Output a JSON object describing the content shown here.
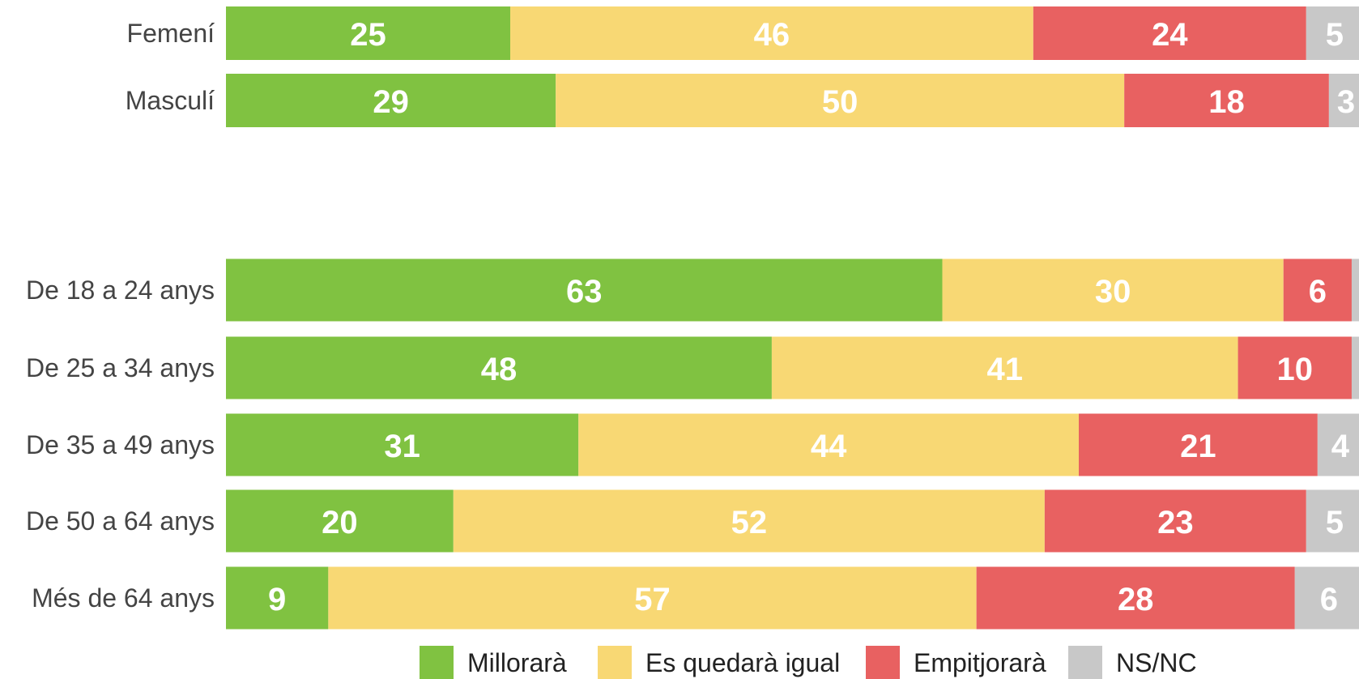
{
  "chart_data": {
    "type": "stacked-barh",
    "categories": [
      "Femení",
      "Masculí",
      "De 18 a 24 anys",
      "De 25 a 34 anys",
      "De 35 a 49 anys",
      "De 50 a 64 anys",
      "Més de 64 anys"
    ],
    "series": [
      {
        "name": "Millorarà",
        "color": "#80c241",
        "values": [
          25,
          29,
          63,
          48,
          31,
          20,
          9
        ]
      },
      {
        "name": "Es quedarà igual",
        "color": "#f8d874",
        "values": [
          46,
          50,
          30,
          41,
          44,
          52,
          57
        ]
      },
      {
        "name": "Empitjorarà",
        "color": "#e86161",
        "values": [
          24,
          18,
          6,
          10,
          21,
          23,
          28
        ]
      },
      {
        "name": "NS/NC",
        "color": "#c8c8c8",
        "values": [
          5,
          3,
          1,
          1,
          4,
          5,
          6
        ]
      }
    ],
    "xlim": [
      0,
      100
    ],
    "legend": "bottom"
  }
}
